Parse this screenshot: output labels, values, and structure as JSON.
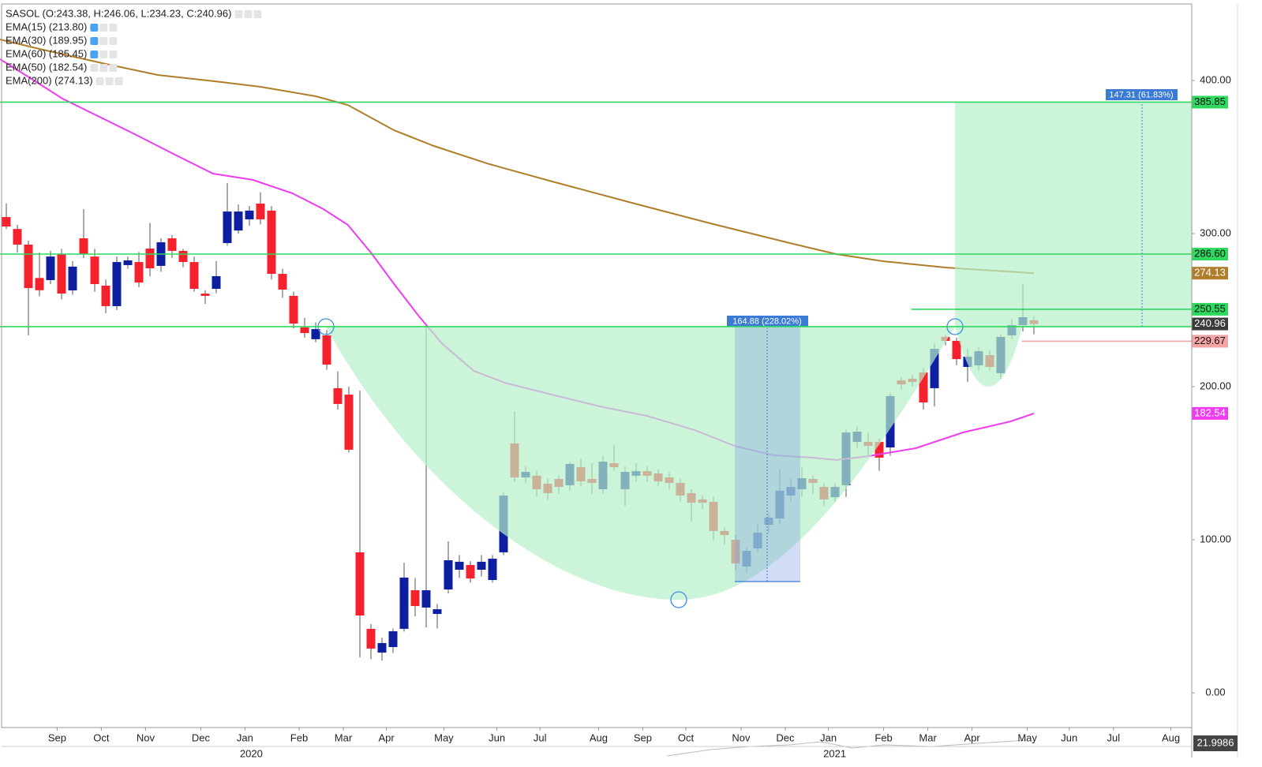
{
  "chart_data": {
    "type": "candlestick",
    "title": "SASOL (O:243.38, H:246.06, L:234.23, C:240.96)",
    "x": [
      0,
      1,
      2,
      3,
      4,
      5,
      6,
      7,
      8,
      9,
      10,
      11,
      12,
      13,
      14,
      15,
      16,
      17,
      18,
      19,
      20,
      21,
      22,
      23,
      24,
      25,
      26,
      27,
      28,
      29,
      30,
      31,
      32,
      33,
      34,
      35,
      36,
      37,
      38,
      39,
      40,
      41,
      42,
      43,
      44,
      45,
      46,
      47,
      48,
      49,
      50,
      51,
      52,
      53,
      54,
      55,
      56,
      57,
      58,
      59,
      60,
      61,
      62,
      63,
      64,
      65,
      66,
      67,
      68,
      69,
      70,
      71,
      72,
      73,
      74,
      75,
      76,
      77,
      78,
      79,
      80,
      81,
      82,
      83,
      84,
      85,
      86,
      87,
      88,
      89,
      90,
      91,
      92,
      93
    ],
    "open": [
      310.8,
      303,
      292.8,
      271,
      269.6,
      286.6,
      262.9,
      296.9,
      285,
      266,
      252.6,
      279.4,
      281.4,
      290.2,
      278.9,
      296.9,
      288.7,
      281.4,
      260.8,
      263.9,
      293.8,
      302,
      309.3,
      319.6,
      315,
      273.7,
      259.3,
      238.7,
      231,
      233.5,
      199,
      194.8,
      91.8,
      41.8,
      26.3,
      29.9,
      41.8,
      67,
      55.7,
      51.5,
      67.5,
      80.4,
      83.5,
      80.4,
      73.7,
      91.8,
      162.9,
      140.7,
      141.8,
      136.6,
      139.7,
      135.6,
      147.4,
      139.7,
      133,
      150,
      133,
      141.8,
      144.8,
      143.3,
      140.7,
      137.1,
      130.4,
      126.3,
      124.7,
      105.7,
      100,
      82.5,
      94.3,
      109.8,
      113.9,
      128.9,
      133,
      139.7,
      134.5,
      127.8,
      135.6,
      163.9,
      163.9,
      163.9,
      160.3,
      204.1,
      205.2,
      209.3,
      199,
      232.5,
      229.9,
      212.9,
      213.9,
      220.6,
      208.8,
      233.5,
      240.2,
      243.38
    ],
    "high": [
      319.6,
      305.7,
      295.4,
      287.6,
      288.7,
      290,
      282,
      316,
      290,
      270,
      285,
      285,
      288,
      307,
      297,
      299,
      290,
      285,
      263,
      282,
      333,
      319,
      318,
      327,
      318,
      277,
      262,
      245,
      242,
      237,
      210,
      200,
      197.4,
      45,
      36,
      42,
      85,
      75,
      239.7,
      58,
      99,
      90,
      86,
      90,
      90,
      131,
      184,
      148,
      145,
      140,
      142,
      151,
      153,
      150,
      155,
      162,
      148,
      150,
      148,
      146,
      144,
      140,
      133,
      129,
      128,
      108,
      103,
      95,
      110,
      118,
      146,
      140,
      147,
      142,
      137,
      137,
      172,
      174,
      170,
      166,
      196,
      206,
      208,
      212,
      228,
      234,
      232,
      225,
      226,
      224,
      234,
      244,
      267,
      246.06
    ],
    "low": [
      303,
      287.6,
      233.5,
      259,
      267,
      257,
      260,
      284,
      262,
      248,
      250,
      277,
      265,
      272,
      275,
      284,
      278,
      262,
      254,
      261,
      292,
      300,
      305,
      306,
      270,
      258,
      238,
      232,
      229,
      211,
      185,
      157,
      23.2,
      22,
      21,
      26,
      40,
      50,
      42.8,
      42,
      65,
      75,
      72,
      76,
      72,
      90,
      138,
      137,
      128,
      126,
      130,
      132,
      135,
      130,
      130,
      145,
      122,
      138,
      138,
      135,
      133,
      125,
      112,
      120,
      100,
      97,
      80,
      78,
      92,
      104,
      110,
      125,
      128,
      130,
      122,
      125,
      128,
      160,
      155,
      145,
      155,
      198,
      200,
      185,
      187,
      227,
      214,
      203,
      210,
      210,
      205,
      231,
      236,
      234.23
    ],
    "close": [
      304.6,
      292.8,
      264.4,
      263,
      285,
      260.8,
      278.4,
      286.6,
      267,
      252.6,
      281.4,
      282.5,
      268,
      277.3,
      294.3,
      288.7,
      281.4,
      263.9,
      259.3,
      272.2,
      314.4,
      314.4,
      315,
      309.3,
      273.7,
      263.4,
      241.2,
      235,
      237.6,
      214.4,
      188.7,
      158.8,
      50.5,
      28.9,
      32.5,
      40.2,
      75.3,
      56.7,
      67,
      54.6,
      86.6,
      85.6,
      74.7,
      85.6,
      87.6,
      128.9,
      140.7,
      144.3,
      133,
      130.4,
      134.5,
      149.5,
      138.1,
      137.1,
      151,
      147.4,
      144.3,
      144.8,
      141.8,
      138.1,
      137.1,
      128.9,
      124.2,
      124.2,
      105.7,
      103.1,
      84.5,
      92.8,
      104.6,
      114.4,
      132,
      134.5,
      140.2,
      137.1,
      126.3,
      134.5,
      170.1,
      170.6,
      161.3,
      153.6,
      193.8,
      201.5,
      203.1,
      189.7,
      224.7,
      229.9,
      218,
      219.6,
      223.2,
      212.9,
      232.5,
      240.2,
      245.4,
      240.96
    ],
    "up_color": "#0d1ea0",
    "down_color": "#f5222d",
    "xlim": [
      -0.571,
      107.286
    ],
    "ylim": [
      -22.68,
      450
    ],
    "xticks": [
      {
        "value": 4.6,
        "label": "Sep"
      },
      {
        "value": 8.6,
        "label": "Oct"
      },
      {
        "value": 12.6,
        "label": "Nov"
      },
      {
        "value": 17.6,
        "label": "Dec"
      },
      {
        "value": 21.6,
        "label": "Jan"
      },
      {
        "value": 26.5,
        "label": "Feb"
      },
      {
        "value": 30.5,
        "label": "Mar"
      },
      {
        "value": 34.4,
        "label": "Apr"
      },
      {
        "value": 39.6,
        "label": "May"
      },
      {
        "value": 44.4,
        "label": "Jun"
      },
      {
        "value": 48.3,
        "label": "Jul"
      },
      {
        "value": 53.6,
        "label": "Aug"
      },
      {
        "value": 57.6,
        "label": "Sep"
      },
      {
        "value": 61.5,
        "label": "Oct"
      },
      {
        "value": 66.5,
        "label": "Nov"
      },
      {
        "value": 70.5,
        "label": "Dec"
      },
      {
        "value": 74.4,
        "label": "Jan"
      },
      {
        "value": 79.4,
        "label": "Feb"
      },
      {
        "value": 83.4,
        "label": "Mar"
      },
      {
        "value": 87.4,
        "label": "Apr"
      },
      {
        "value": 92.4,
        "label": "May"
      },
      {
        "value": 96.2,
        "label": "Jun"
      },
      {
        "value": 100.2,
        "label": "Jul"
      },
      {
        "value": 105.4,
        "label": "Aug"
      }
    ],
    "year_ticks": [
      {
        "value": 21.6,
        "label": "2020"
      },
      {
        "value": 74.4,
        "label": "2021"
      }
    ],
    "yticks": [
      {
        "value": 0,
        "label": "0.00"
      },
      {
        "value": 100,
        "label": "100.00"
      },
      {
        "value": 200,
        "label": "200.00"
      },
      {
        "value": 300,
        "label": "300.00"
      },
      {
        "value": 400,
        "label": "400.00"
      }
    ],
    "indicators": [
      {
        "name": "EMA(15) (213.80)"
      },
      {
        "name": "EMA(30) (189.95)"
      },
      {
        "name": "EMA(60) (185.45)"
      },
      {
        "name": "EMA(50) (182.54)",
        "color": "#f03cf0",
        "x": [
          -0.57,
          2.3,
          5.1,
          8.0,
          11.6,
          15.1,
          18.7,
          22.3,
          25.9,
          28.7,
          30.9,
          33.0,
          35.1,
          37.3,
          39.4,
          42.3,
          45.1,
          49.4,
          53.7,
          58.0,
          62.3,
          65.9,
          69.4,
          73.0,
          75.1,
          78.0,
          82.3,
          86.6,
          90.9,
          93
        ],
        "values": [
          413.9,
          401.0,
          388.1,
          377.8,
          365.0,
          352.1,
          339.2,
          335.1,
          326.3,
          316.0,
          305.7,
          287.6,
          267.0,
          246.4,
          228.4,
          210.3,
          202.6,
          194.8,
          187.1,
          180.9,
          171.6,
          161.3,
          155.2,
          153.6,
          152.1,
          154.6,
          159.8,
          170.1,
          177.3,
          182.54
        ],
        "last": {
          "value": 182.54,
          "label": "182.54"
        }
      },
      {
        "name": "EMA(200) (274.13)",
        "color": "#b07d2a",
        "x": [
          -0.57,
          3.0,
          8.7,
          13.7,
          19.4,
          23.0,
          28.0,
          30.9,
          35.1,
          38.7,
          43.7,
          49.4,
          56.6,
          63.7,
          70.9,
          75.1,
          79.4,
          85.1,
          93
        ],
        "values": [
          426.8,
          420.6,
          411.3,
          403.6,
          399.0,
          395.9,
          389.7,
          384.0,
          367.5,
          357.2,
          345.4,
          334.0,
          320.1,
          306.7,
          293.8,
          286.6,
          281.9,
          277.8,
          274.13
        ],
        "last": {
          "value": 274.13,
          "label": "274.13"
        }
      }
    ],
    "levels": [
      {
        "value": 385.85,
        "label": "385.85",
        "color": "#2fd85f"
      },
      {
        "value": 286.6,
        "label": "286.60",
        "color": "#2fd85f"
      },
      {
        "value": 250.55,
        "label": "250.55",
        "color": "#2fd85f",
        "from": 81.9
      },
      {
        "value": 239.2,
        "color": "#2fd85f"
      },
      {
        "value": 229.67,
        "label": "229.67",
        "color": "#f4a4a4",
        "from": 91.9
      }
    ],
    "last_price": {
      "value": 240.96,
      "label": "240.96"
    },
    "measures": [
      "164.88 (228.02%)",
      "147.31 (61.83%)"
    ],
    "footer_value": "21.9986"
  }
}
